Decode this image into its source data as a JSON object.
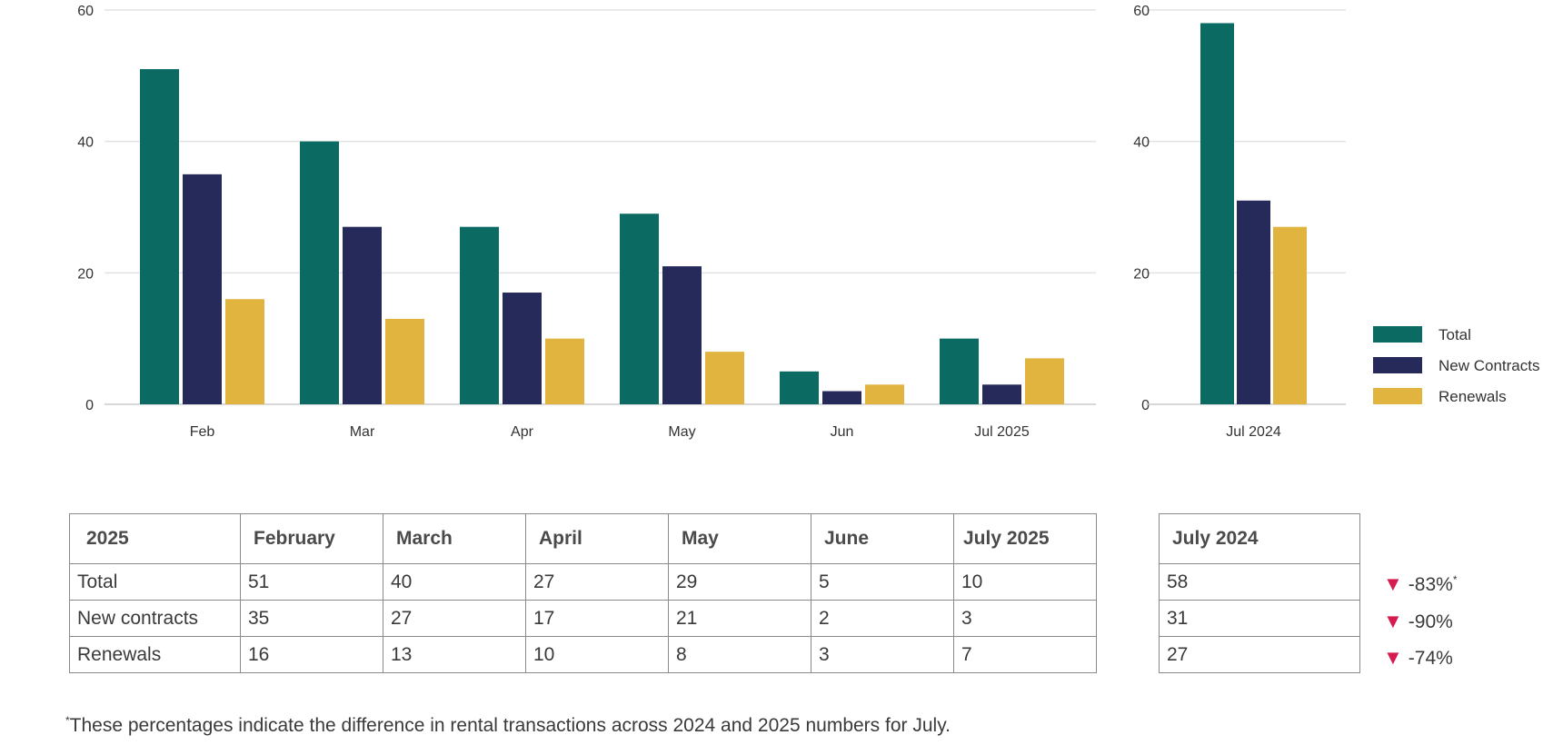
{
  "chart_data": [
    {
      "type": "bar",
      "categories": [
        "Feb",
        "Mar",
        "Apr",
        "May",
        "Jun",
        "Jul 2025"
      ],
      "series": [
        {
          "name": "Total",
          "values": [
            51,
            40,
            27,
            29,
            5,
            10
          ]
        },
        {
          "name": "New Contracts",
          "values": [
            35,
            27,
            17,
            21,
            2,
            3
          ]
        },
        {
          "name": "Renewals",
          "values": [
            16,
            13,
            10,
            8,
            3,
            7
          ]
        }
      ],
      "ylim": [
        0,
        60
      ],
      "yticks": [
        0,
        20,
        40,
        60
      ],
      "grid": true
    },
    {
      "type": "bar",
      "categories": [
        "Jul 2024"
      ],
      "series": [
        {
          "name": "Total",
          "values": [
            58
          ]
        },
        {
          "name": "New Contracts",
          "values": [
            31
          ]
        },
        {
          "name": "Renewals",
          "values": [
            27
          ]
        }
      ],
      "ylim": [
        0,
        60
      ],
      "yticks": [
        0,
        20,
        40,
        60
      ],
      "grid": true,
      "legend": "right"
    }
  ],
  "colors": {
    "Total": "#0b6b63",
    "New Contracts": "#252a5a",
    "Renewals": "#e0b43f",
    "decrease": "#d81b4f"
  },
  "legend": [
    "Total",
    "New Contracts",
    "Renewals"
  ],
  "main_table": {
    "headers": [
      "2025",
      "February",
      "March",
      "April",
      "May",
      "June",
      "July 2025"
    ],
    "rows": [
      [
        "Total",
        "51",
        "40",
        "27",
        "29",
        "5",
        "10"
      ],
      [
        "New contracts",
        "35",
        "27",
        "17",
        "21",
        "2",
        "3"
      ],
      [
        "Renewals",
        "16",
        "13",
        "10",
        "8",
        "3",
        "7"
      ]
    ]
  },
  "side_table": {
    "header": "July 2024",
    "rows": [
      "58",
      "31",
      "27"
    ]
  },
  "changes": [
    {
      "icon": "down-triangle-icon",
      "glyph": "▼",
      "value": "-83%",
      "mark": "*"
    },
    {
      "icon": "down-triangle-icon",
      "glyph": "▼",
      "value": "-90%",
      "mark": ""
    },
    {
      "icon": "down-triangle-icon",
      "glyph": "▼",
      "value": "-74%",
      "mark": ""
    }
  ],
  "footnote": {
    "mark": "*",
    "text": "These percentages indicate the difference in rental transactions across 2024 and 2025 numbers for July."
  }
}
